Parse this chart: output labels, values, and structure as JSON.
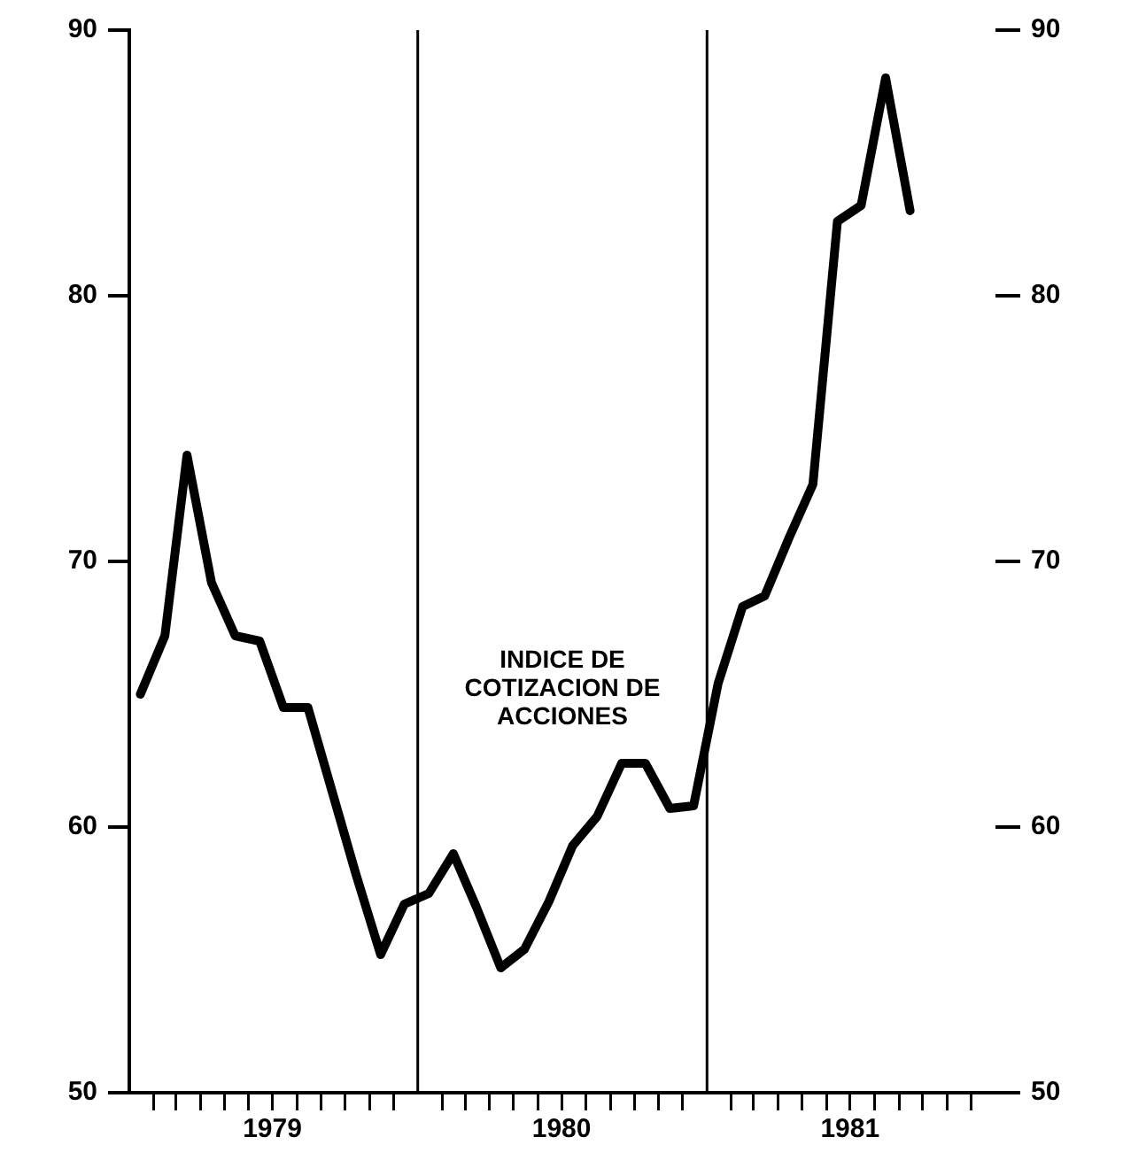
{
  "chart_data": {
    "type": "line",
    "x": [
      "1979-01-15",
      "1979-02-15",
      "1979-03-15",
      "1979-04-15",
      "1979-05-15",
      "1979-06-15",
      "1979-07-15",
      "1979-08-15",
      "1979-09-15",
      "1979-10-15",
      "1979-11-15",
      "1979-12-15",
      "1980-01-15",
      "1980-02-15",
      "1980-03-15",
      "1980-04-15",
      "1980-05-15",
      "1980-06-15",
      "1980-07-15",
      "1980-08-15",
      "1980-09-15",
      "1980-10-15",
      "1980-11-15",
      "1980-12-15",
      "1981-01-15",
      "1981-02-15",
      "1981-03-15",
      "1981-04-15",
      "1981-05-15",
      "1981-06-15",
      "1981-07-15",
      "1981-08-15",
      "1981-09-15"
    ],
    "series": [
      {
        "color": "#000000",
        "values": [
          65.0,
          67.2,
          74.0,
          69.2,
          67.2,
          67.0,
          64.5,
          64.5,
          61.3,
          58.2,
          55.2,
          57.1,
          57.5,
          59.0,
          57.0,
          54.7,
          55.4,
          57.2,
          59.3,
          60.4,
          62.4,
          62.4,
          60.7,
          60.8,
          65.4,
          68.3,
          68.7,
          70.9,
          72.9,
          82.8,
          83.4,
          88.2,
          83.2
        ]
      }
    ],
    "xlim": [
      "1979-01-01",
      "1982-01-01"
    ],
    "xticks": [
      {
        "value": "1979-02-01",
        "label": null
      },
      {
        "value": "1979-03-01",
        "label": null
      },
      {
        "value": "1979-04-01",
        "label": null
      },
      {
        "value": "1979-05-01",
        "label": null
      },
      {
        "value": "1979-06-01",
        "label": null
      },
      {
        "value": "1979-07-01",
        "label": "1979"
      },
      {
        "value": "1979-08-01",
        "label": null
      },
      {
        "value": "1979-09-01",
        "label": null
      },
      {
        "value": "1979-10-01",
        "label": null
      },
      {
        "value": "1979-11-01",
        "label": null
      },
      {
        "value": "1979-12-01",
        "label": null
      },
      {
        "value": "1980-02-01",
        "label": null
      },
      {
        "value": "1980-03-01",
        "label": null
      },
      {
        "value": "1980-04-01",
        "label": null
      },
      {
        "value": "1980-05-01",
        "label": null
      },
      {
        "value": "1980-06-01",
        "label": null
      },
      {
        "value": "1980-07-01",
        "label": "1980"
      },
      {
        "value": "1980-08-01",
        "label": null
      },
      {
        "value": "1980-09-01",
        "label": null
      },
      {
        "value": "1980-10-01",
        "label": null
      },
      {
        "value": "1980-11-01",
        "label": null
      },
      {
        "value": "1980-12-01",
        "label": null
      },
      {
        "value": "1981-02-01",
        "label": null
      },
      {
        "value": "1981-03-01",
        "label": null
      },
      {
        "value": "1981-04-01",
        "label": null
      },
      {
        "value": "1981-05-01",
        "label": null
      },
      {
        "value": "1981-06-01",
        "label": null
      },
      {
        "value": "1981-07-01",
        "label": "1981"
      },
      {
        "value": "1981-08-01",
        "label": null
      },
      {
        "value": "1981-09-01",
        "label": null
      },
      {
        "value": "1981-10-01",
        "label": null
      },
      {
        "value": "1981-11-01",
        "label": null
      },
      {
        "value": "1981-12-01",
        "label": null
      }
    ],
    "ylim": [
      50,
      90
    ],
    "yticks": [
      50,
      60,
      70,
      80,
      90
    ],
    "y2lim": [
      50,
      90
    ],
    "y2ticks": [
      50,
      60,
      70,
      80,
      90
    ],
    "ref_lines": [
      {
        "axis": "x",
        "value": "1980-01-01",
        "color": "#000000"
      },
      {
        "axis": "x",
        "value": "1981-01-01",
        "color": "#000000"
      }
    ],
    "annotations": [
      "INDICE DE\nCOTIZACION DE\nACCIONES"
    ],
    "grid": false,
    "legend": false,
    "marker": "none",
    "line_style": "solid"
  }
}
